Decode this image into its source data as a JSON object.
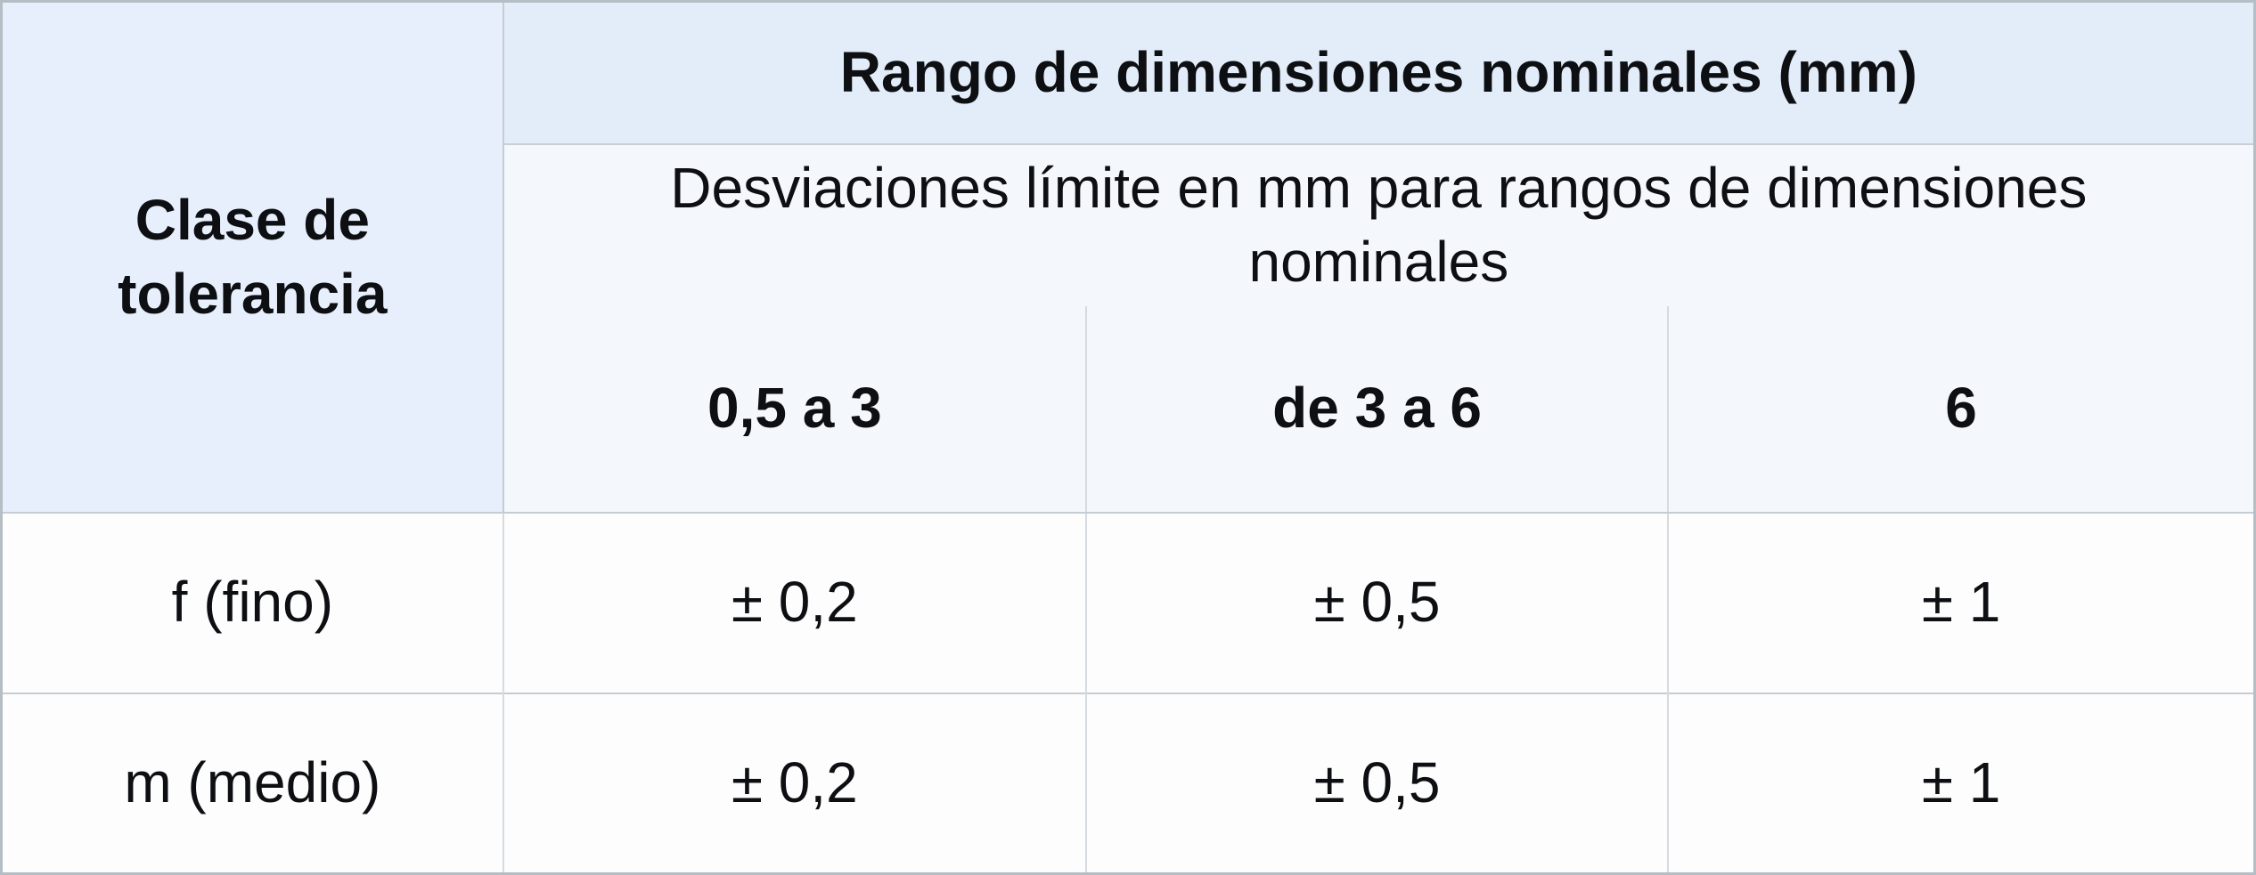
{
  "table": {
    "corner_header": "Clase de tolerancia",
    "group_header": "Rango de dimensiones nominales (mm)",
    "subtitle": "Desviaciones límite en mm para rangos de dimensiones nominales",
    "range_headers": [
      "0,5 a 3",
      "de 3 a 6",
      "6"
    ],
    "rows": [
      {
        "tolerance_class": "f (fino)",
        "deviations": [
          "± 0,2",
          "± 0,5",
          "± 1"
        ]
      },
      {
        "tolerance_class": "m (medio)",
        "deviations": [
          "± 0,2",
          "± 0,5",
          "± 1"
        ]
      }
    ],
    "colors": {
      "header_bg": "#e5eefb",
      "subheader_bg": "#f4f8fd",
      "row_bg": "#fdfdfe",
      "outer_border": "#b5bdc5",
      "grid_line": "#c5ccd3",
      "light_divider": "#d6dbe1",
      "text": "#0d0f12"
    }
  }
}
